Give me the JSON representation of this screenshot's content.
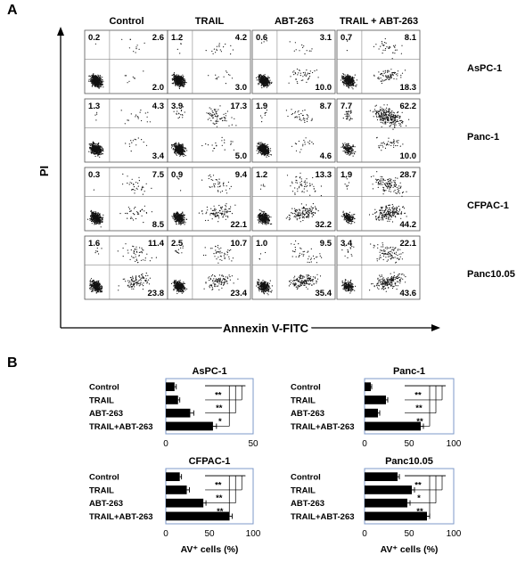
{
  "panel_a": {
    "label": "A",
    "columns": [
      "Control",
      "TRAIL",
      "ABT-263",
      "TRAIL + ABT-263"
    ],
    "rows": [
      "AsPC-1",
      "Panc-1",
      "CFPAC-1",
      "Panc10.05"
    ],
    "y_axis_label": "PI",
    "x_axis_label": "Annexin V-FITC",
    "quadrants": [
      [
        [
          0.2,
          2.6,
          2.0
        ],
        [
          1.2,
          4.2,
          3.0
        ],
        [
          0.6,
          3.1,
          10.0
        ],
        [
          0.7,
          8.1,
          18.3
        ]
      ],
      [
        [
          1.3,
          4.3,
          3.4
        ],
        [
          3.9,
          17.3,
          5.0
        ],
        [
          1.9,
          8.7,
          4.6
        ],
        [
          7.7,
          62.2,
          10.0
        ]
      ],
      [
        [
          0.3,
          7.5,
          8.5
        ],
        [
          0.9,
          9.4,
          22.1
        ],
        [
          1.2,
          13.3,
          32.2
        ],
        [
          1.9,
          28.7,
          44.2
        ]
      ],
      [
        [
          1.6,
          11.4,
          23.8
        ],
        [
          2.5,
          10.7,
          23.4
        ],
        [
          1.0,
          9.5,
          35.4
        ],
        [
          3.4,
          22.1,
          43.6
        ]
      ]
    ]
  },
  "panel_b": {
    "label": "B",
    "significance_labels": [
      "**",
      "**",
      "*",
      "**",
      "**",
      "**",
      "**",
      "**",
      "**",
      "**",
      "*",
      "**"
    ]
  },
  "chart_data": [
    {
      "type": "bar",
      "orientation": "horizontal",
      "title": "AsPC-1",
      "categories": [
        "Control",
        "TRAIL",
        "ABT-263",
        "TRAIL+ABT-263"
      ],
      "values": [
        5,
        7,
        14,
        27
      ],
      "errors": [
        1,
        1,
        2,
        2
      ],
      "xlim": [
        0,
        50
      ],
      "xticks": [
        "0",
        "50"
      ],
      "xlabel": "",
      "significance": [
        "**",
        "**",
        "*"
      ],
      "color": "#000000"
    },
    {
      "type": "bar",
      "orientation": "horizontal",
      "title": "Panc-1",
      "categories": [
        "Control",
        "TRAIL",
        "ABT-263",
        "TRAIL+ABT-263"
      ],
      "values": [
        7,
        24,
        15,
        63
      ],
      "errors": [
        1,
        2,
        2,
        3
      ],
      "xlim": [
        0,
        100
      ],
      "xticks": [
        "0",
        "50",
        "100"
      ],
      "xlabel": "",
      "significance": [
        "**",
        "**",
        "**"
      ],
      "color": "#000000"
    },
    {
      "type": "bar",
      "orientation": "horizontal",
      "title": "CFPAC-1",
      "categories": [
        "Control",
        "TRAIL",
        "ABT-263",
        "TRAIL+ABT-263"
      ],
      "values": [
        16,
        24,
        43,
        73
      ],
      "errors": [
        2,
        3,
        3,
        3
      ],
      "xlim": [
        0,
        100
      ],
      "xticks": [
        "0",
        "50",
        "100"
      ],
      "xlabel": "AV⁺ cells (%)",
      "significance": [
        "**",
        "**",
        "**"
      ],
      "color": "#000000"
    },
    {
      "type": "bar",
      "orientation": "horizontal",
      "title": "Panc10.05",
      "categories": [
        "Control",
        "TRAIL",
        "ABT-263",
        "TRAIL+ABT-263"
      ],
      "values": [
        37,
        53,
        48,
        70
      ],
      "errors": [
        2,
        3,
        3,
        3
      ],
      "xlim": [
        0,
        100
      ],
      "xticks": [
        "0",
        "50",
        "100"
      ],
      "xlabel": "AV⁺ cells (%)",
      "significance": [
        "**",
        "*",
        "**"
      ],
      "color": "#000000"
    }
  ]
}
